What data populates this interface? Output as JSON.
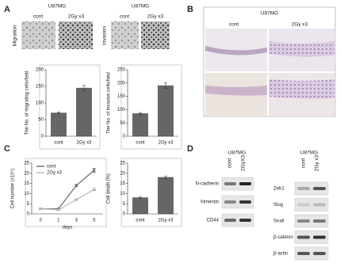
{
  "figure": {
    "panel_letters": [
      "A",
      "B",
      "C",
      "D"
    ],
    "a_headers": [
      {
        "cell_line": "U87MG",
        "conditions": [
          "cont",
          "2Gy x3"
        ],
        "assay": "Migration"
      },
      {
        "cell_line": "U87MG",
        "conditions": [
          "cont",
          "2Gy x3"
        ],
        "assay": "Invasion"
      }
    ],
    "b_header": {
      "cell_line": "U87MG",
      "conditions": [
        "cont",
        "2Gy x3"
      ]
    },
    "d_blots": [
      {
        "cell_line": "U87MG",
        "conditions": [
          "cont",
          "2GyX3"
        ],
        "proteins": [
          "N-cadherin",
          "Vimentin",
          "CD44"
        ]
      },
      {
        "cell_line": "U87MG",
        "conditions": [
          "cont",
          "2Gy x3"
        ],
        "proteins": [
          "Zeb1",
          "Slug",
          "Snail",
          "β-catenin",
          "β-actin"
        ]
      }
    ]
  },
  "chart_data": [
    {
      "type": "bar",
      "ylabel": "The No. of migrating cells/field",
      "categories": [
        "cont",
        "2Gy x3"
      ],
      "values": [
        70,
        145
      ],
      "errors": [
        3,
        8
      ],
      "color": "#666666",
      "ylim": [
        0,
        200
      ],
      "yticks": [
        0,
        50,
        100,
        150,
        200
      ]
    },
    {
      "type": "bar",
      "ylabel": "The No. of invasive cells/field",
      "categories": [
        "cont",
        "2Gy x3"
      ],
      "values": [
        85,
        190
      ],
      "errors": [
        4,
        10
      ],
      "color": "#666666",
      "ylim": [
        0,
        250
      ],
      "yticks": [
        0,
        50,
        100,
        150,
        200,
        250
      ]
    },
    {
      "type": "line",
      "ylabel": "Cell number (x10⁴)",
      "xlabel": "days",
      "categories": [
        "0",
        "1",
        "3",
        "5"
      ],
      "series": [
        {
          "name": "cont",
          "color": "#707070",
          "values": [
            2.5,
            2.5,
            14,
            21.5
          ],
          "errors": [
            0.3,
            0.3,
            0.6,
            0.9
          ]
        },
        {
          "name": "2Gy x3",
          "color": "#bdbdbd",
          "values": [
            2.5,
            2,
            7,
            12
          ],
          "errors": [
            0.3,
            0.3,
            0.4,
            0.5
          ]
        }
      ],
      "ylim": [
        0,
        25
      ],
      "yticks": [
        0,
        5,
        10,
        15,
        20,
        25
      ],
      "legend": "upper-left"
    },
    {
      "type": "bar",
      "ylabel": "Cell death (%)",
      "categories": [
        "cont",
        "2Gy x3"
      ],
      "values": [
        8,
        18
      ],
      "errors": [
        0.4,
        0.7
      ],
      "color": "#666666",
      "ylim": [
        0,
        25
      ],
      "yticks": [
        0,
        5,
        10,
        15,
        20,
        25
      ]
    }
  ]
}
